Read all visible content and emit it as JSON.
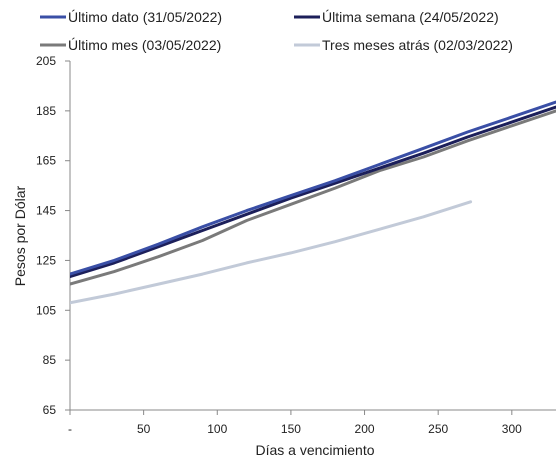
{
  "chart_data": {
    "type": "line",
    "title": "",
    "xlabel": "Días a vencimiento",
    "ylabel": "Pesos por Dólar",
    "xlim": [
      0,
      330
    ],
    "ylim": [
      65,
      205
    ],
    "x_ticks": [
      0,
      50,
      100,
      150,
      200,
      250,
      300
    ],
    "x_tick_labels": [
      "-",
      "50",
      "100",
      "150",
      "200",
      "250",
      "300"
    ],
    "y_ticks": [
      65,
      85,
      105,
      125,
      145,
      165,
      185,
      205
    ],
    "y_tick_labels": [
      "65",
      "85",
      "105",
      "125",
      "145",
      "165",
      "185",
      "205"
    ],
    "grid": false,
    "legend_position": "top",
    "series": [
      {
        "name": "Último dato (31/05/2022)",
        "color": "#3a4fa6",
        "x": [
          0,
          30,
          60,
          90,
          120,
          150,
          180,
          210,
          240,
          270,
          300,
          330
        ],
        "y": [
          119.5,
          125.0,
          131.5,
          138.5,
          145.0,
          151.0,
          157.0,
          163.5,
          170.0,
          176.5,
          182.5,
          188.5
        ]
      },
      {
        "name": "Última semana (24/05/2022)",
        "color": "#1c1f5a",
        "x": [
          0,
          30,
          60,
          90,
          120,
          150,
          180,
          210,
          240,
          270,
          300,
          330
        ],
        "y": [
          118.5,
          124.0,
          130.5,
          137.0,
          143.5,
          150.0,
          156.0,
          162.0,
          168.0,
          174.5,
          180.5,
          186.5
        ]
      },
      {
        "name": "Último mes (03/05/2022)",
        "color": "#7a7a7a",
        "x": [
          0,
          30,
          60,
          90,
          120,
          150,
          180,
          210,
          240,
          270,
          300,
          330
        ],
        "y": [
          115.5,
          120.5,
          126.5,
          133.0,
          141.0,
          147.5,
          154.0,
          161.0,
          166.5,
          173.0,
          179.0,
          185.0
        ]
      },
      {
        "name": "Tres meses atrás (02/03/2022)",
        "color": "#c2cad8",
        "x": [
          0,
          30,
          60,
          90,
          120,
          150,
          180,
          210,
          240,
          272
        ],
        "y": [
          108.0,
          111.5,
          115.5,
          119.5,
          124.0,
          128.0,
          132.5,
          137.5,
          142.5,
          148.5
        ]
      }
    ]
  }
}
